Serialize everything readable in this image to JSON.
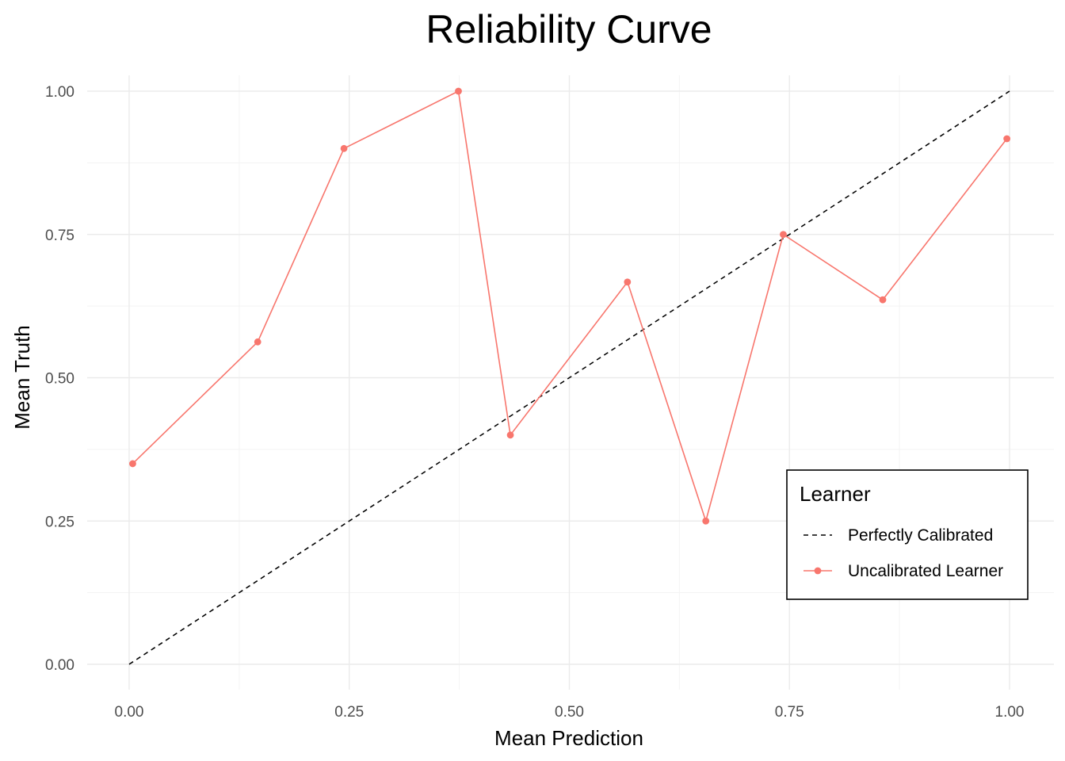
{
  "chart_data": {
    "type": "line",
    "title": "Reliability Curve",
    "xlabel": "Mean Prediction",
    "ylabel": "Mean Truth",
    "xlim": [
      0,
      1
    ],
    "ylim": [
      0,
      1
    ],
    "x_ticks": [
      "0.00",
      "0.25",
      "0.50",
      "0.75",
      "1.00"
    ],
    "y_ticks": [
      "0.00",
      "0.25",
      "0.50",
      "0.75",
      "1.00"
    ],
    "grid": true,
    "legend": {
      "title": "Learner",
      "placement": "inside-bottom-right"
    },
    "series": [
      {
        "name": "Perfectly Calibrated",
        "style": "dashed",
        "color": "#000000",
        "x": [
          0,
          1
        ],
        "y": [
          0,
          1
        ]
      },
      {
        "name": "Uncalibrated Learner",
        "style": "solid-with-points",
        "color": "#F8766D",
        "x": [
          0.004,
          0.146,
          0.244,
          0.374,
          0.433,
          0.566,
          0.655,
          0.743,
          0.856,
          0.997
        ],
        "y": [
          0.35,
          0.5625,
          0.9,
          1.0,
          0.4,
          0.667,
          0.25,
          0.75,
          0.636,
          0.917
        ]
      }
    ]
  }
}
